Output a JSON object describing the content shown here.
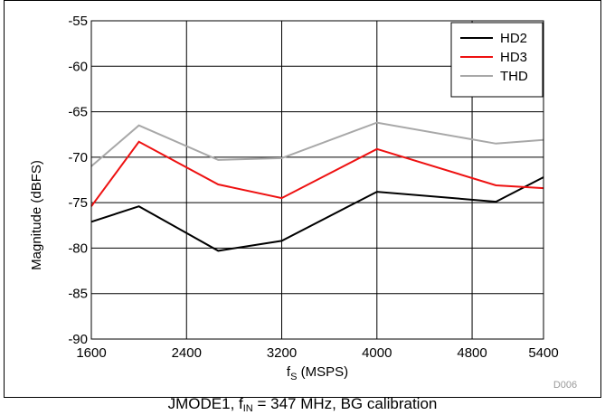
{
  "chart_data": {
    "type": "line",
    "xlabel_main": "f",
    "xlabel_sub": "S",
    "xlabel_rest": " (MSPS)",
    "ylabel": "Magnitude (dBFS)",
    "xlim": [
      1600,
      5400
    ],
    "ylim": [
      -90,
      -55
    ],
    "xticks": [
      1600,
      2400,
      3200,
      4000,
      4800,
      5400
    ],
    "yticks": [
      -55,
      -60,
      -65,
      -70,
      -75,
      -80,
      -85,
      -90
    ],
    "grid": true,
    "legend_position": "top-right",
    "series": [
      {
        "name": "HD2",
        "color": "#000000",
        "points": [
          [
            1600,
            -77.1
          ],
          [
            2000,
            -75.4
          ],
          [
            2666,
            -80.3
          ],
          [
            3200,
            -79.2
          ],
          [
            4000,
            -73.8
          ],
          [
            5000,
            -74.9
          ],
          [
            5400,
            -72.2
          ]
        ]
      },
      {
        "name": "HD3",
        "color": "#ee1111",
        "points": [
          [
            1600,
            -75.4
          ],
          [
            2000,
            -68.3
          ],
          [
            2666,
            -73.0
          ],
          [
            3200,
            -74.5
          ],
          [
            4000,
            -69.1
          ],
          [
            5000,
            -73.1
          ],
          [
            5400,
            -73.4
          ]
        ]
      },
      {
        "name": "THD",
        "color": "#a8a8a8",
        "points": [
          [
            1600,
            -71.0
          ],
          [
            2000,
            -66.5
          ],
          [
            2666,
            -70.3
          ],
          [
            3200,
            -70.1
          ],
          [
            4000,
            -66.2
          ],
          [
            5000,
            -68.5
          ],
          [
            5400,
            -68.1
          ]
        ]
      }
    ]
  },
  "watermark": "D006",
  "caption": {
    "main": "JMODE1, f",
    "sub": "IN",
    "rest": " = 347 MHz, BG calibration"
  }
}
